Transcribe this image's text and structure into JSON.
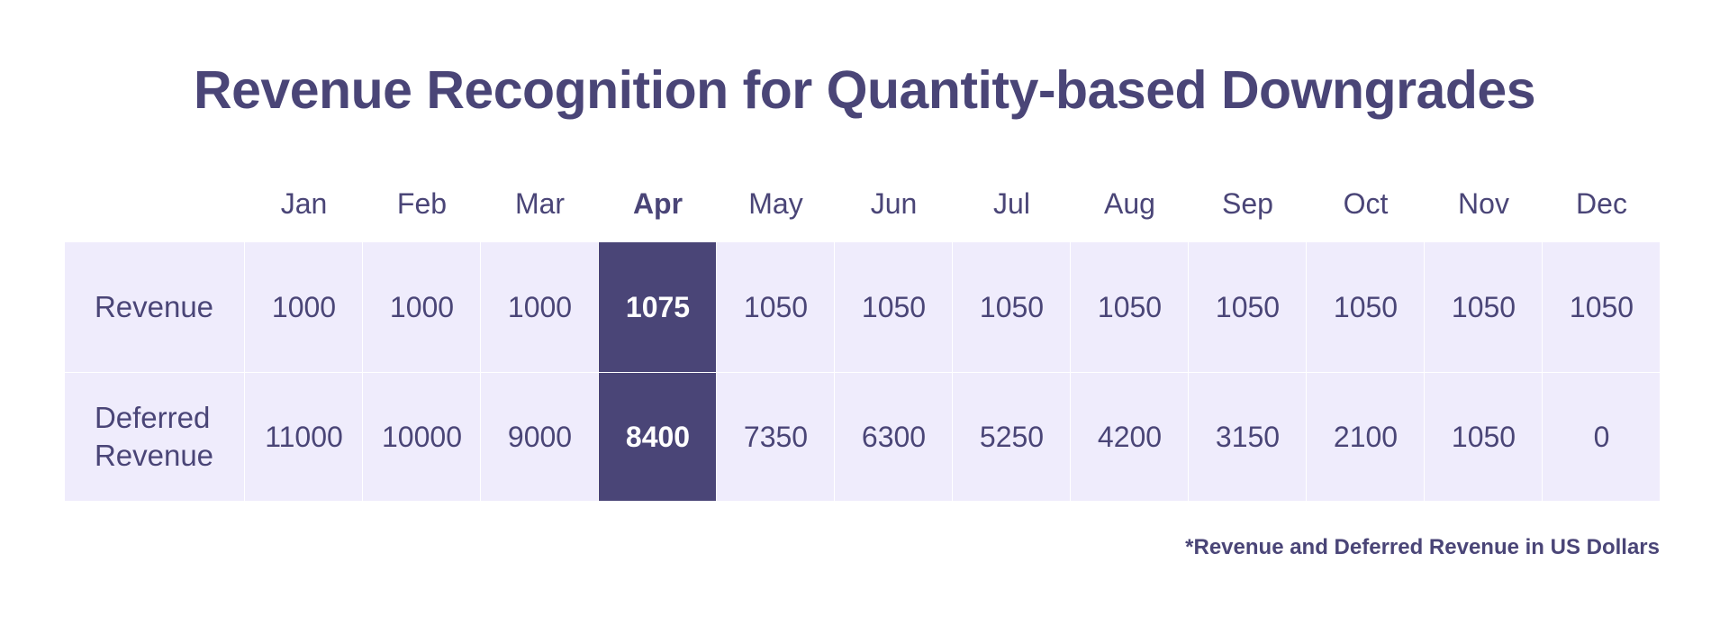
{
  "chart_data": {
    "type": "table",
    "title": "Revenue Recognition for Quantity-based Downgrades",
    "columns": [
      "Jan",
      "Feb",
      "Mar",
      "Apr",
      "May",
      "Jun",
      "Jul",
      "Aug",
      "Sep",
      "Oct",
      "Nov",
      "Dec"
    ],
    "highlight_column": "Apr",
    "rows": [
      {
        "label": "Revenue",
        "values": [
          "1000",
          "1000",
          "1000",
          "1075",
          "1050",
          "1050",
          "1050",
          "1050",
          "1050",
          "1050",
          "1050",
          "1050"
        ]
      },
      {
        "label": "Deferred Revenue",
        "label_lines": [
          "Deferred",
          "Revenue"
        ],
        "values": [
          "11000",
          "10000",
          "9000",
          "8400",
          "7350",
          "6300",
          "5250",
          "4200",
          "3150",
          "2100",
          "1050",
          "0"
        ]
      }
    ],
    "footnote": "*Revenue and Deferred Revenue in US Dollars",
    "colors": {
      "text": "#4a4577",
      "row_background": "#efecfc",
      "highlight_background": "#4a4577",
      "highlight_text": "#ffffff"
    }
  }
}
